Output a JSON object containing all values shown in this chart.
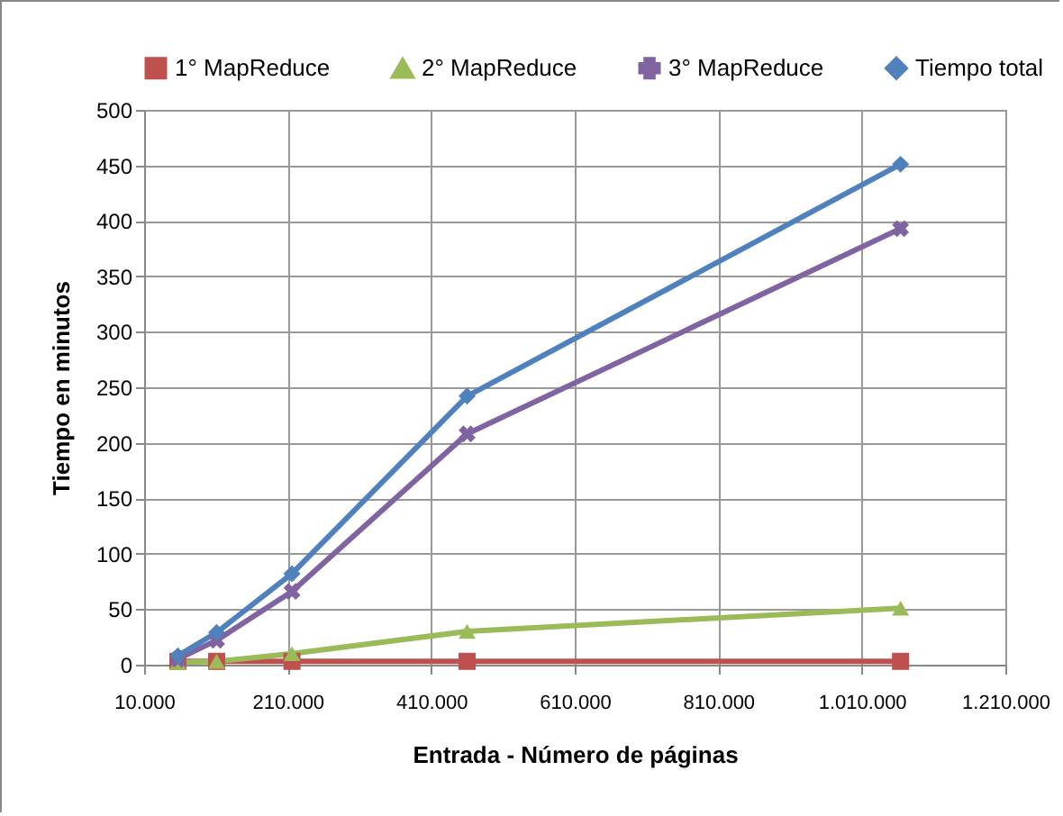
{
  "chart_data": {
    "type": "line",
    "xlabel": "Entrada - Número de páginas",
    "ylabel": "Tiempo en minutos",
    "x": [
      57000,
      111000,
      216000,
      460000,
      1064000
    ],
    "series": [
      {
        "name": "1° MapReduce",
        "color": "#c0504d",
        "marker": "square",
        "values": [
          3,
          3,
          3,
          3,
          3
        ]
      },
      {
        "name": "2° MapReduce",
        "color": "#9bbb59",
        "marker": "triangle",
        "values": [
          2,
          3,
          10,
          30,
          51
        ]
      },
      {
        "name": "3° MapReduce",
        "color": "#8064a2",
        "marker": "cross",
        "values": [
          5,
          22,
          66,
          208,
          393
        ]
      },
      {
        "name": "Tiempo total",
        "color": "#4f81bd",
        "marker": "diamond",
        "values": [
          8,
          29,
          82,
          242,
          451
        ]
      }
    ],
    "xlim": [
      10000,
      1210000
    ],
    "xticks": [
      {
        "value": 10000,
        "label": "10.000"
      },
      {
        "value": 210000,
        "label": "210.000"
      },
      {
        "value": 410000,
        "label": "410.000"
      },
      {
        "value": 610000,
        "label": "610.000"
      },
      {
        "value": 810000,
        "label": "810.000"
      },
      {
        "value": 1010000,
        "label": "1.010.000"
      },
      {
        "value": 1210000,
        "label": "1.210.000"
      }
    ],
    "ylim": [
      0,
      500
    ],
    "yticks": [
      0,
      50,
      100,
      150,
      200,
      250,
      300,
      350,
      400,
      450,
      500
    ],
    "grid": true,
    "legend": "top",
    "line_style": "solid"
  }
}
